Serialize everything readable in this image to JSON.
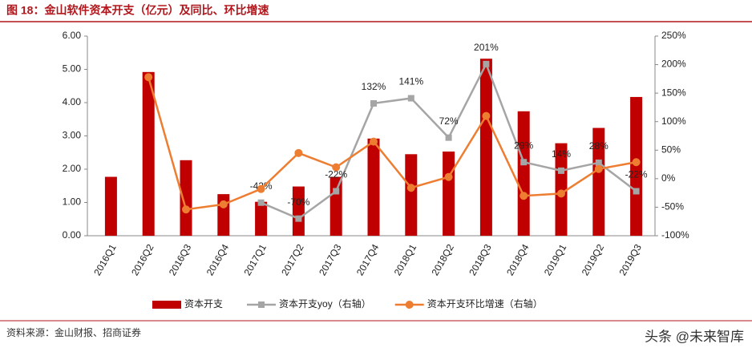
{
  "chart_data": {
    "type": "bar",
    "title": "图 18：金山软件资本开支（亿元）及同比、环比增速",
    "source": "资料来源：金山财报、招商证券",
    "watermark": "头条 @未来智库",
    "categories": [
      "2016Q1",
      "2016Q2",
      "2016Q3",
      "2016Q4",
      "2017Q1",
      "2017Q2",
      "2017Q3",
      "2017Q4",
      "2018Q1",
      "2018Q2",
      "2018Q3",
      "2018Q4",
      "2019Q1",
      "2019Q2",
      "2019Q3"
    ],
    "series": [
      {
        "name": "资本开支",
        "type": "bar",
        "color": "#c00000",
        "values": [
          1.77,
          4.92,
          2.27,
          1.25,
          1.02,
          1.48,
          1.77,
          2.92,
          2.45,
          2.53,
          5.32,
          3.74,
          2.78,
          3.24,
          4.17
        ]
      },
      {
        "name": "资本开支yoy（右轴）",
        "type": "line",
        "axis": "y2",
        "color": "#a5a5a5",
        "marker": "square",
        "values": [
          null,
          null,
          null,
          null,
          -42,
          -70,
          -22,
          132,
          141,
          72,
          201,
          29,
          14,
          28,
          -22
        ],
        "value_labels": [
          null,
          null,
          null,
          null,
          "-42%",
          "-70%",
          "-22%",
          "132%",
          "141%",
          "72%",
          "201%",
          "29%",
          "14%",
          "28%",
          "-22%"
        ]
      },
      {
        "name": "资本开支环比增速（右轴）",
        "type": "line",
        "axis": "y2",
        "color": "#ed7d31",
        "marker": "circle",
        "values": [
          null,
          178,
          -54,
          -45,
          -18,
          45,
          20,
          65,
          -16,
          3,
          110,
          -30,
          -26,
          17,
          29
        ]
      }
    ],
    "ylim": [
      0,
      6
    ],
    "yticks": [
      {
        "value": 0,
        "label": "0.00"
      },
      {
        "value": 1,
        "label": "1.00"
      },
      {
        "value": 2,
        "label": "2.00"
      },
      {
        "value": 3,
        "label": "3.00"
      },
      {
        "value": 4,
        "label": "4.00"
      },
      {
        "value": 5,
        "label": "5.00"
      },
      {
        "value": 6,
        "label": "6.00"
      }
    ],
    "y2lim": [
      -100,
      250
    ],
    "y2ticks": [
      {
        "value": -100,
        "label": "-100%"
      },
      {
        "value": -50,
        "label": "-50%"
      },
      {
        "value": 0,
        "label": "0%"
      },
      {
        "value": 50,
        "label": "50%"
      },
      {
        "value": 100,
        "label": "100%"
      },
      {
        "value": 150,
        "label": "150%"
      },
      {
        "value": 200,
        "label": "200%"
      },
      {
        "value": 250,
        "label": "250%"
      }
    ],
    "grid": false,
    "legend": "bottom"
  }
}
